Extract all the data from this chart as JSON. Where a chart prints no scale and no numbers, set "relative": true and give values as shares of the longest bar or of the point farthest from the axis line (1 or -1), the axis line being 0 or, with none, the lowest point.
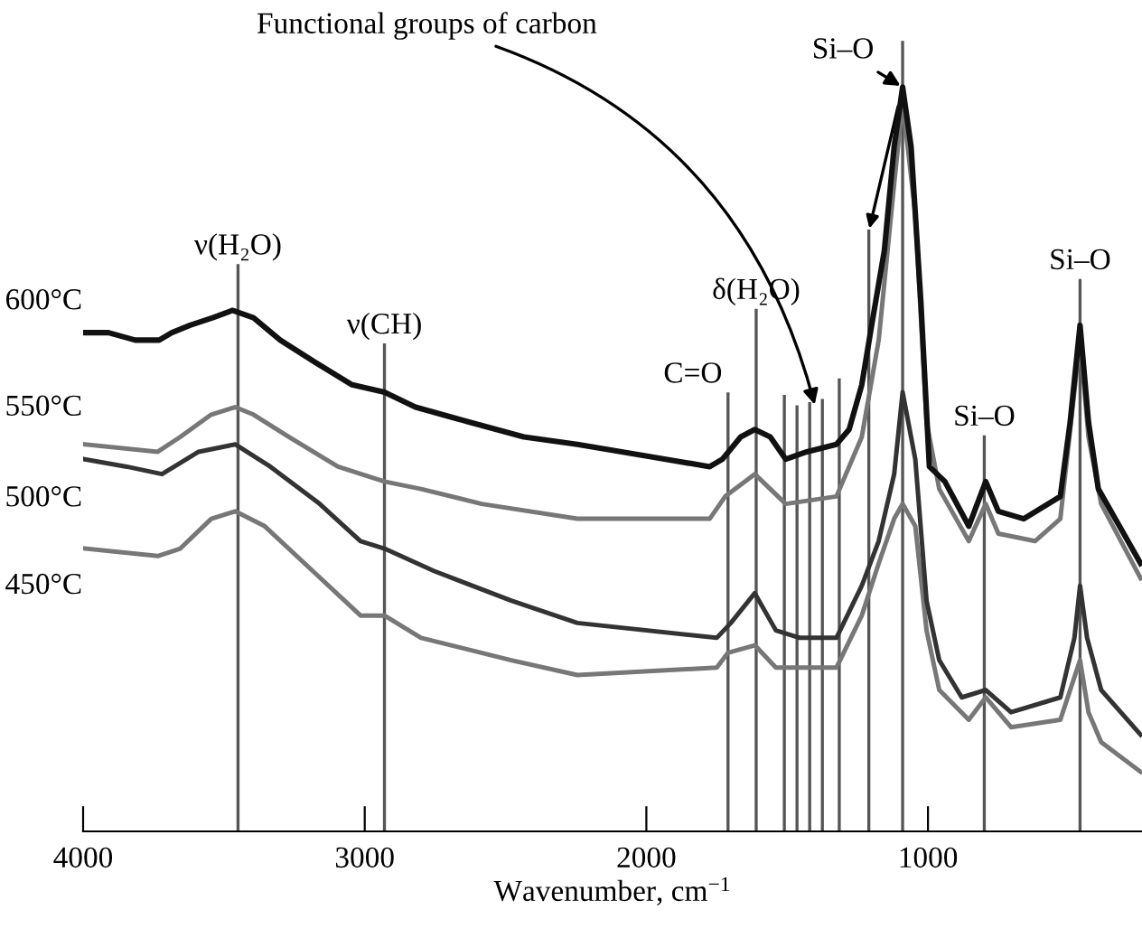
{
  "chart_data": {
    "type": "line",
    "relative": true,
    "xlabel": "Wavenumber, cm$^{−1}$",
    "xlim": [
      4000,
      240
    ],
    "xticks": [
      4000,
      3000,
      2000,
      1000
    ],
    "grid": false,
    "legend": false,
    "marker": "none",
    "line_style": "solid",
    "series": [
      {
        "name": "600°C",
        "color": "#111111",
        "x": [
          3995,
          3910,
          3815,
          3730,
          3685,
          3620,
          3540,
          3470,
          3395,
          3300,
          3175,
          3045,
          2930,
          2820,
          2630,
          2435,
          2245,
          1775,
          1730,
          1665,
          1615,
          1560,
          1505,
          1430,
          1325,
          1280,
          1235,
          1200,
          1155,
          1120,
          1090,
          1060,
          1025,
          995,
          940,
          855,
          795,
          750,
          660,
          530,
          495,
          460,
          430,
          395,
          320,
          245
        ],
        "values": [
          0.67,
          0.67,
          0.66,
          0.66,
          0.67,
          0.68,
          0.69,
          0.7,
          0.69,
          0.66,
          0.63,
          0.6,
          0.59,
          0.57,
          0.55,
          0.53,
          0.52,
          0.49,
          0.5,
          0.53,
          0.54,
          0.53,
          0.5,
          0.51,
          0.52,
          0.54,
          0.6,
          0.68,
          0.78,
          0.92,
          1.0,
          0.92,
          0.71,
          0.49,
          0.47,
          0.41,
          0.47,
          0.43,
          0.42,
          0.45,
          0.55,
          0.68,
          0.55,
          0.46,
          0.41,
          0.36
        ]
      },
      {
        "name": "550°C",
        "color": "#777777",
        "x": [
          3995,
          3735,
          3655,
          3545,
          3460,
          3395,
          3270,
          3095,
          2930,
          2800,
          2585,
          2245,
          1775,
          1720,
          1615,
          1505,
          1325,
          1235,
          1175,
          1120,
          1090,
          1045,
          1005,
          960,
          855,
          795,
          750,
          620,
          530,
          460,
          430,
          385,
          245
        ],
        "values": [
          0.52,
          0.51,
          0.53,
          0.56,
          0.57,
          0.56,
          0.53,
          0.49,
          0.47,
          0.46,
          0.44,
          0.42,
          0.42,
          0.45,
          0.48,
          0.44,
          0.45,
          0.53,
          0.66,
          0.87,
          0.98,
          0.83,
          0.55,
          0.46,
          0.39,
          0.44,
          0.4,
          0.39,
          0.42,
          0.66,
          0.53,
          0.44,
          0.34
        ]
      },
      {
        "name": "500°C",
        "color": "#333333",
        "x": [
          3995,
          3845,
          3720,
          3590,
          3460,
          3335,
          3160,
          3015,
          2930,
          2755,
          2480,
          2245,
          1750,
          1700,
          1615,
          1540,
          1455,
          1325,
          1235,
          1175,
          1120,
          1090,
          1045,
          1005,
          960,
          880,
          795,
          705,
          530,
          480,
          460,
          435,
          385,
          245
        ],
        "values": [
          0.5,
          0.49,
          0.48,
          0.51,
          0.52,
          0.49,
          0.44,
          0.39,
          0.38,
          0.35,
          0.31,
          0.28,
          0.26,
          0.28,
          0.32,
          0.27,
          0.26,
          0.26,
          0.33,
          0.39,
          0.48,
          0.59,
          0.5,
          0.31,
          0.23,
          0.18,
          0.19,
          0.16,
          0.18,
          0.26,
          0.33,
          0.26,
          0.19,
          0.13
        ]
      },
      {
        "name": "450°C",
        "color": "#777777",
        "x": [
          3995,
          3735,
          3655,
          3545,
          3460,
          3355,
          3185,
          3015,
          2930,
          2800,
          2480,
          2245,
          1750,
          1710,
          1615,
          1540,
          1325,
          1235,
          1175,
          1120,
          1090,
          1045,
          1005,
          960,
          855,
          795,
          705,
          530,
          460,
          430,
          385,
          245
        ],
        "values": [
          0.38,
          0.37,
          0.38,
          0.42,
          0.43,
          0.41,
          0.35,
          0.29,
          0.29,
          0.26,
          0.23,
          0.21,
          0.22,
          0.24,
          0.25,
          0.22,
          0.22,
          0.29,
          0.36,
          0.42,
          0.44,
          0.41,
          0.27,
          0.19,
          0.15,
          0.18,
          0.14,
          0.15,
          0.23,
          0.16,
          0.12,
          0.08
        ]
      }
    ],
    "ref_lines": [
      {
        "axis": "x",
        "value": 3450,
        "label": "ν(H₂O)",
        "color": "#555555"
      },
      {
        "axis": "x",
        "value": 2930,
        "label": "ν(CH)",
        "color": "#555555"
      },
      {
        "axis": "x",
        "value": 1710,
        "label": "C=O",
        "color": "#555555"
      },
      {
        "axis": "x",
        "value": 1610,
        "label": "δ(H₂O)",
        "color": "#555555"
      },
      {
        "axis": "x",
        "value": 1510,
        "color": "#555555"
      },
      {
        "axis": "x",
        "value": 1465,
        "color": "#555555"
      },
      {
        "axis": "x",
        "value": 1420,
        "color": "#555555"
      },
      {
        "axis": "x",
        "value": 1375,
        "color": "#555555"
      },
      {
        "axis": "x",
        "value": 1315,
        "color": "#555555"
      },
      {
        "axis": "x",
        "value": 1210,
        "color": "#555555"
      },
      {
        "axis": "x",
        "value": 1090,
        "color": "#555555"
      },
      {
        "axis": "x",
        "value": 800,
        "label": "Si–O",
        "color": "#555555"
      },
      {
        "axis": "x",
        "value": 460,
        "label": "Si–O",
        "color": "#555555"
      }
    ],
    "annotations": [
      {
        "text": "Functional groups of carbon",
        "x": 1400,
        "y": 0.57
      },
      {
        "text": "Si–O",
        "x": 1090,
        "y": 1.0
      }
    ]
  }
}
